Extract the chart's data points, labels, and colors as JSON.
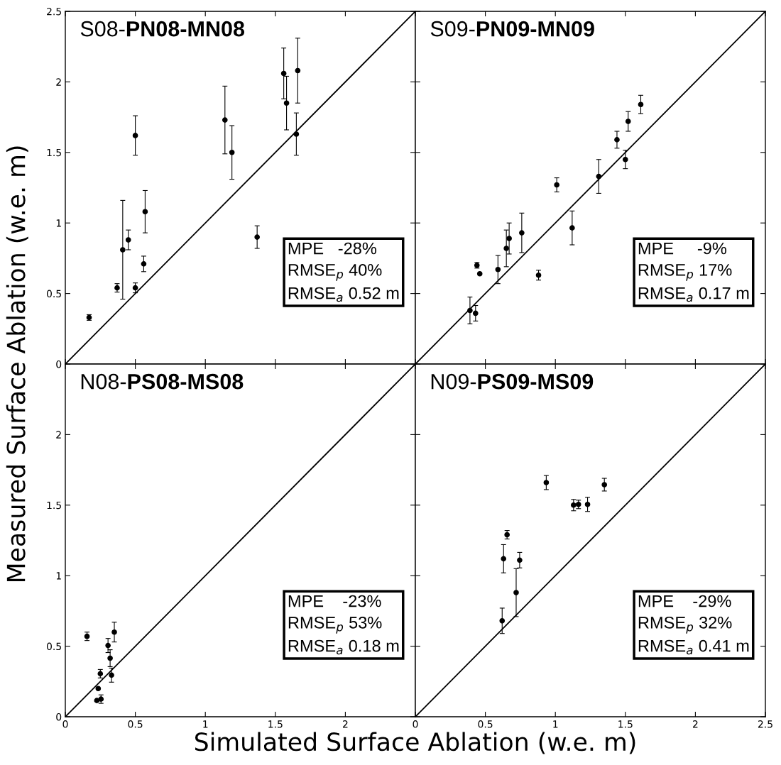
{
  "chart_data": [
    {
      "type": "scatter",
      "title": "S08-PN08-MN08",
      "ylabel": "Measured Surface Ablation (w.e. m)",
      "xlim": [
        0,
        2.5
      ],
      "ylim": [
        0,
        2.5
      ],
      "xticks": [
        0,
        0.5,
        1,
        1.5,
        2,
        2.5
      ],
      "yticks": [
        0,
        0.5,
        1,
        1.5,
        2,
        2.5
      ],
      "tick_labels": "y",
      "annotations": [
        "MPE   -28%",
        "RMSE$_{p}$ 40%",
        "RMSE$_{a}$ 0.52 m"
      ],
      "series": [
        {
          "color": "#000000",
          "marker": "circle",
          "x": [
            0.17,
            0.37,
            0.41,
            0.45,
            0.5,
            0.5,
            0.56,
            0.57,
            1.14,
            1.19,
            1.56,
            1.58,
            1.66,
            1.65,
            1.37
          ],
          "values": [
            0.33,
            0.54,
            0.81,
            0.88,
            0.54,
            1.62,
            0.71,
            1.08,
            1.73,
            1.5,
            2.06,
            1.85,
            2.08,
            1.63,
            0.9
          ],
          "errors": [
            0.02,
            0.03,
            0.35,
            0.07,
            0.035,
            0.14,
            0.055,
            0.15,
            0.24,
            0.19,
            0.18,
            0.19,
            0.23,
            0.15,
            0.08
          ]
        },
        {
          "type": "line",
          "color": "#000000",
          "marker": "none",
          "line_style": "solid",
          "x": [
            0,
            2.5
          ],
          "values": [
            0,
            2.5
          ]
        }
      ]
    },
    {
      "type": "scatter",
      "title": "S09-PN09-MN09",
      "xlim": [
        0,
        2.5
      ],
      "ylim": [
        0,
        2.5
      ],
      "xticks": [
        0,
        0.5,
        1,
        1.5,
        2,
        2.5
      ],
      "yticks": [
        0,
        0.5,
        1,
        1.5,
        2,
        2.5
      ],
      "tick_labels": false,
      "annotations": [
        "MPE     -9%",
        "RMSE$_{p}$ 17%",
        "RMSE$_{a}$ 0.17 m"
      ],
      "series": [
        {
          "color": "#000000",
          "marker": "circle",
          "x": [
            0.39,
            0.43,
            0.44,
            0.46,
            0.59,
            0.65,
            0.67,
            0.76,
            0.88,
            1.01,
            1.12,
            1.31,
            1.44,
            1.5,
            1.52,
            1.61
          ],
          "values": [
            0.38,
            0.36,
            0.7,
            0.64,
            0.67,
            0.82,
            0.89,
            0.93,
            0.63,
            1.27,
            0.965,
            1.33,
            1.59,
            1.45,
            1.72,
            1.84
          ],
          "errors": [
            0.095,
            0.055,
            0.02,
            null,
            0.1,
            0.13,
            0.11,
            0.14,
            0.035,
            0.05,
            0.12,
            0.12,
            0.06,
            0.065,
            0.07,
            0.065
          ]
        },
        {
          "type": "line",
          "color": "#000000",
          "marker": "none",
          "line_style": "solid",
          "x": [
            0,
            2.5
          ],
          "values": [
            0,
            2.5
          ]
        }
      ]
    },
    {
      "type": "scatter",
      "title": "N08-PS08-MS08",
      "xlabel": "Simulated Surface Ablation (w.e. m)",
      "xlim": [
        0,
        2.5
      ],
      "ylim": [
        0,
        2.5
      ],
      "xticks": [
        0,
        0.5,
        1,
        1.5,
        2,
        {
          "value": 2.5,
          "label": null
        }
      ],
      "yticks": [
        0,
        0.5,
        1,
        1.5,
        2,
        {
          "value": 2.5,
          "label": null
        }
      ],
      "annotations": [
        "MPE    -23%",
        "RMSE$_{p}$ 53%",
        "RMSE$_{a}$ 0.18 m"
      ],
      "series": [
        {
          "color": "#000000",
          "marker": "circle",
          "x": [
            0.155,
            0.225,
            0.255,
            0.235,
            0.25,
            0.305,
            0.32,
            0.33,
            0.35
          ],
          "values": [
            0.57,
            0.115,
            0.125,
            0.2,
            0.305,
            0.505,
            0.415,
            0.295,
            0.6
          ],
          "errors": [
            0.03,
            null,
            0.03,
            null,
            0.03,
            0.05,
            0.06,
            0.05,
            0.07
          ]
        },
        {
          "type": "line",
          "color": "#000000",
          "marker": "none",
          "line_style": "solid",
          "x": [
            0,
            2.5
          ],
          "values": [
            0,
            2.5
          ]
        }
      ]
    },
    {
      "type": "scatter",
      "title": "N09-PS09-MS09",
      "xlim": [
        0,
        2.5
      ],
      "ylim": [
        0,
        2.5
      ],
      "xticks": [
        0,
        0.5,
        1,
        1.5,
        2,
        2.5
      ],
      "yticks": [
        0,
        0.5,
        1,
        1.5,
        2,
        2.5
      ],
      "tick_labels": "x",
      "annotations": [
        "MPE    -29%",
        "RMSE$_{p}$ 32%",
        "RMSE$_{a}$ 0.41 m"
      ],
      "series": [
        {
          "color": "#000000",
          "marker": "circle",
          "x": [
            0.62,
            0.63,
            0.655,
            0.72,
            0.745,
            0.935,
            1.13,
            1.165,
            1.23,
            1.35
          ],
          "values": [
            0.68,
            1.12,
            1.29,
            0.88,
            1.11,
            1.66,
            1.5,
            1.505,
            1.505,
            1.645
          ],
          "errors": [
            0.09,
            0.1,
            0.03,
            0.17,
            0.055,
            0.05,
            0.04,
            0.03,
            0.05,
            0.045
          ]
        },
        {
          "type": "line",
          "color": "#000000",
          "marker": "none",
          "line_style": "solid",
          "x": [
            0,
            2.5
          ],
          "values": [
            0,
            2.5
          ]
        }
      ]
    }
  ]
}
